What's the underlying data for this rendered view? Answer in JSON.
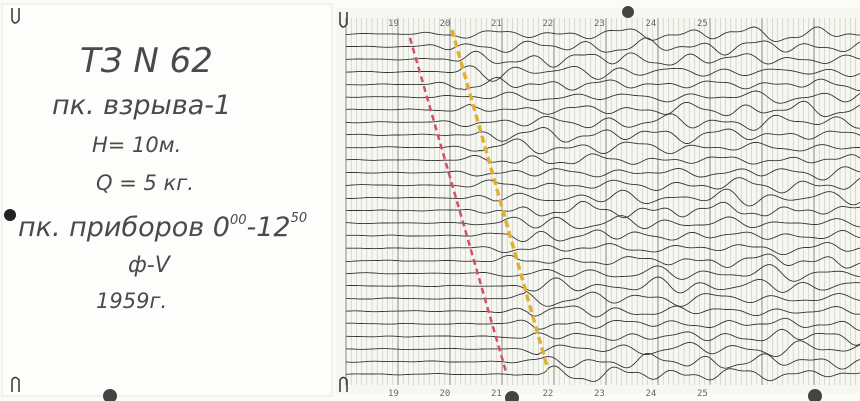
{
  "card": {
    "title": "ТЗ N 62",
    "shot_point": "пк. взрыва-1",
    "depth": "Н= 10м.",
    "charge": "Q = 5 кг.",
    "receivers": {
      "text": "пк. приборов 0",
      "sup_start": "00",
      "range_end": "-12",
      "sup_end": "50"
    },
    "filter": "ф-V",
    "year": "1959г."
  },
  "seismogram": {
    "top_marks": [
      "19",
      "20",
      "21",
      "22",
      "23",
      "24",
      "25"
    ],
    "bottom_marks": [
      "19",
      "20",
      "21",
      "22",
      "23",
      "24",
      "25"
    ]
  }
}
